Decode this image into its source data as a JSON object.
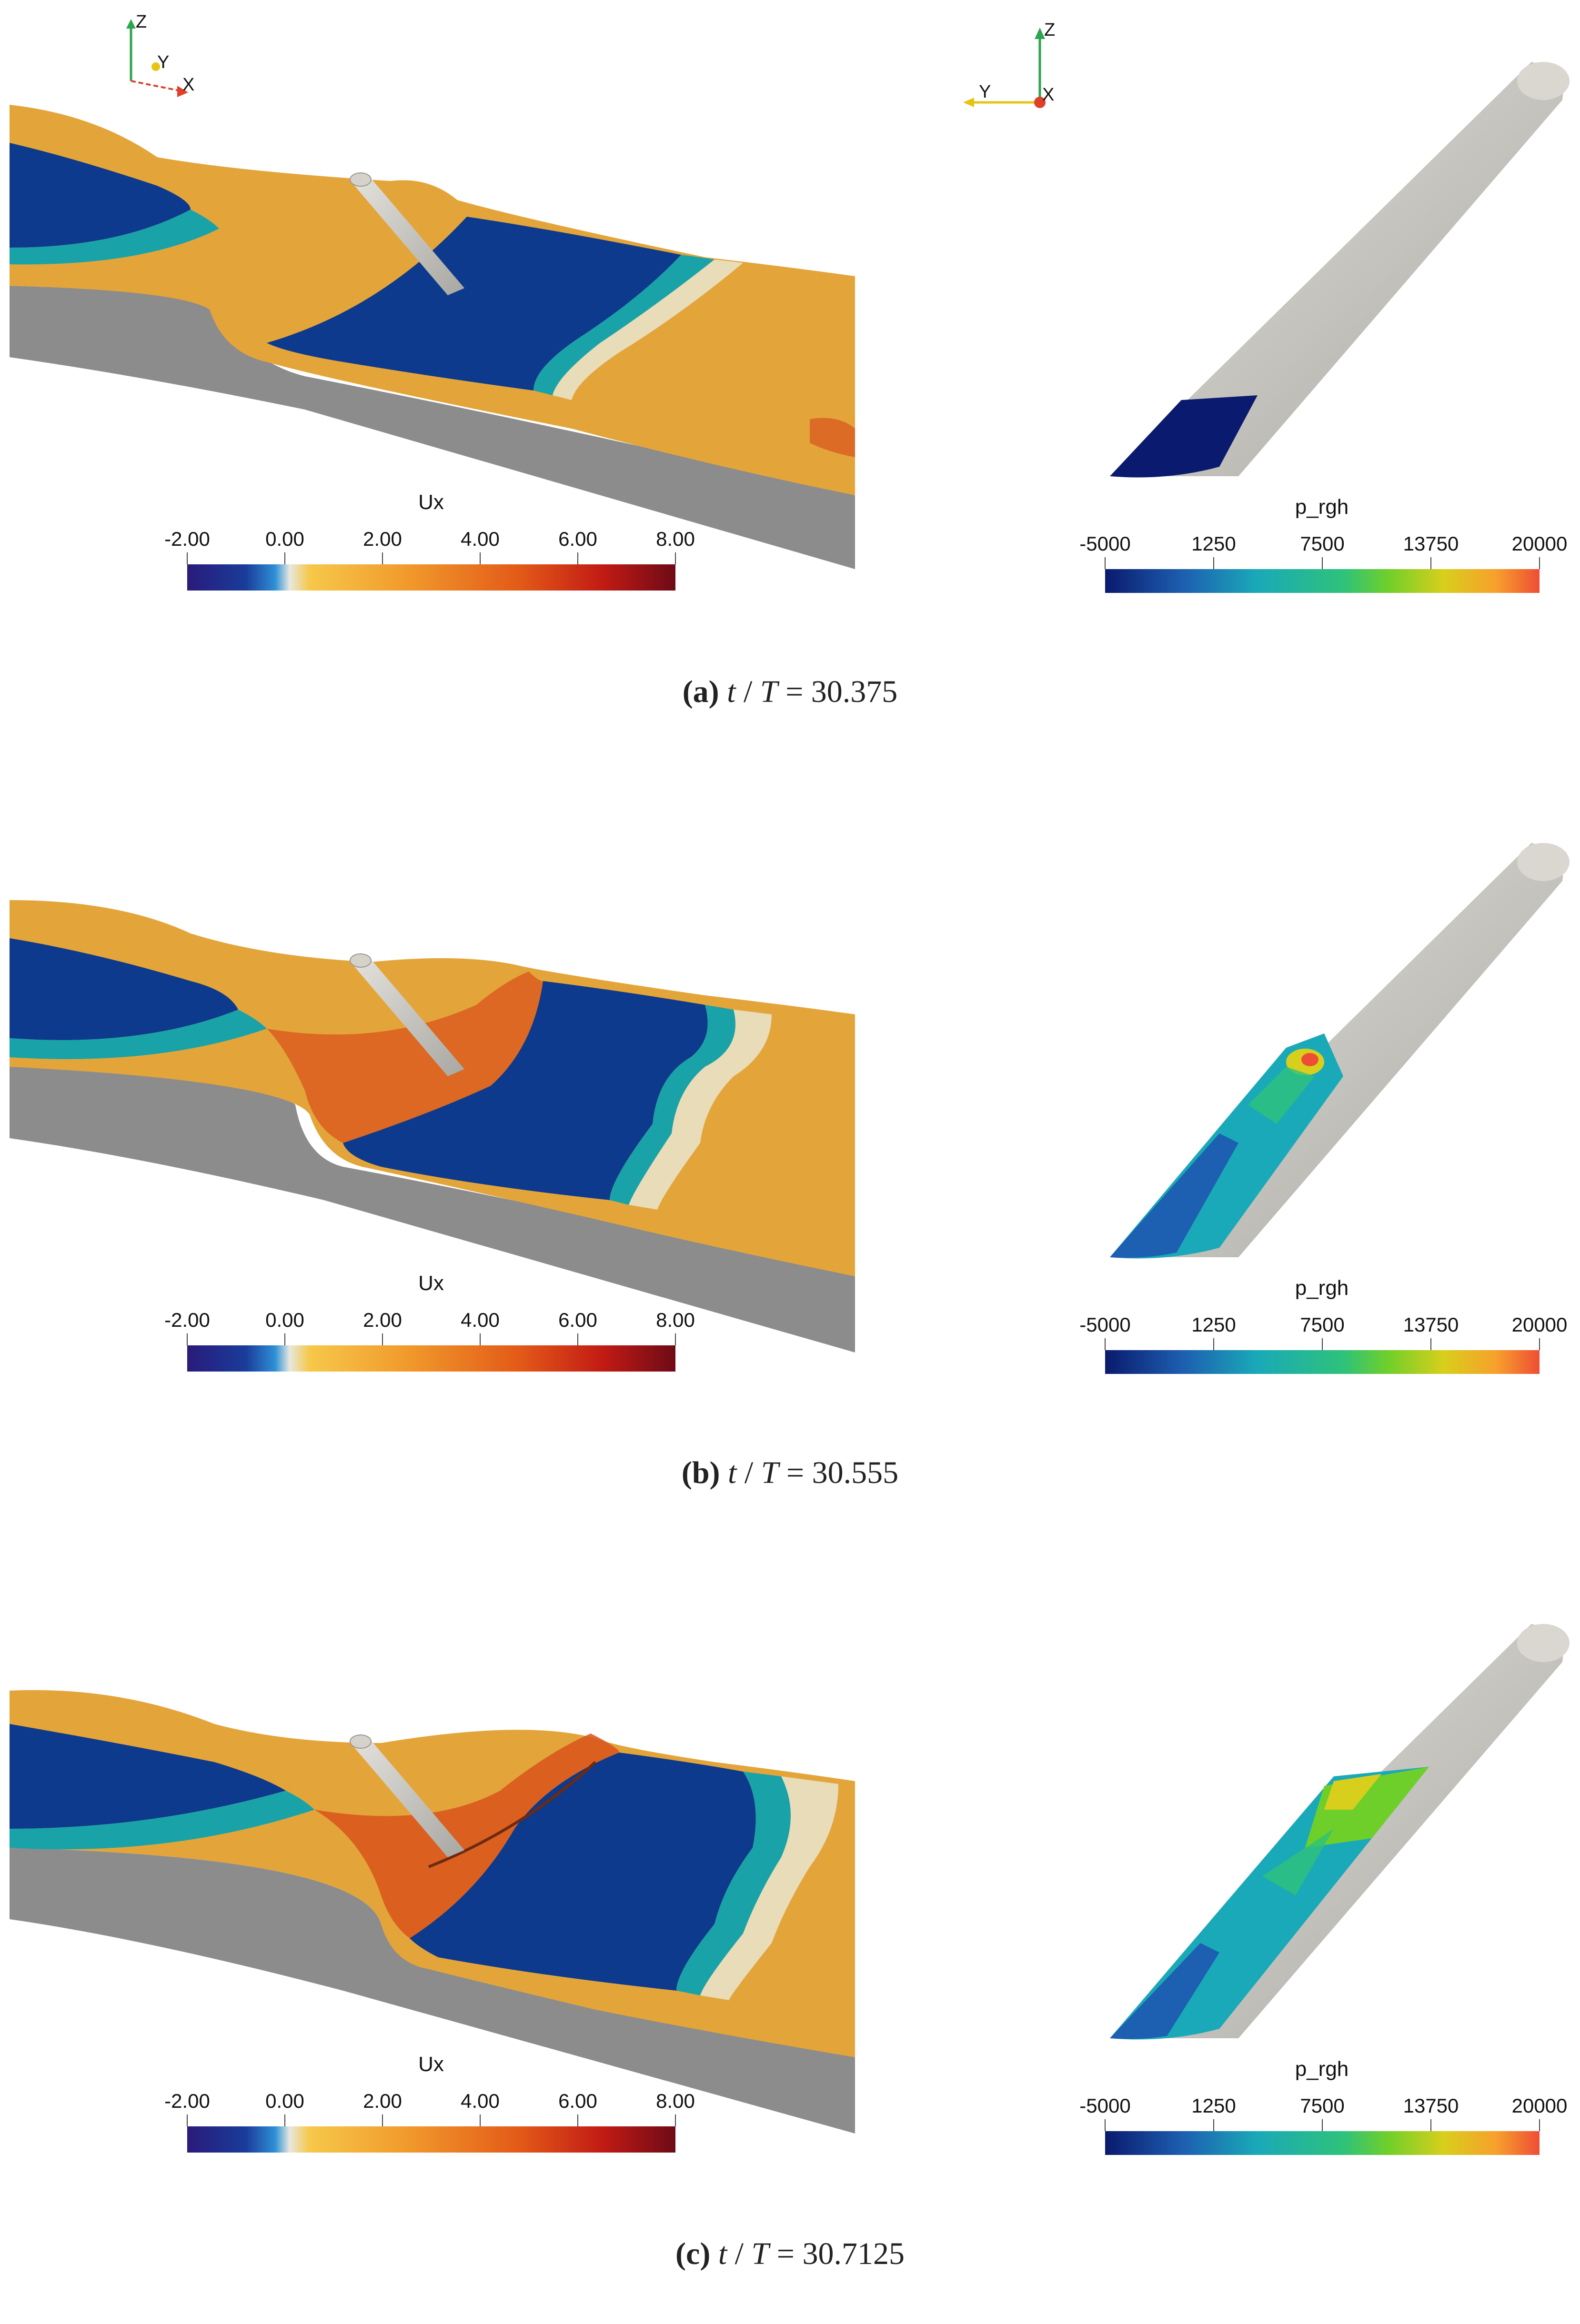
{
  "axes_left": {
    "z": "Z",
    "y": "Y",
    "x": "X"
  },
  "axes_right": {
    "z": "Z",
    "y": "Y",
    "x": "X"
  },
  "ux_bar": {
    "title": "Ux",
    "ticks": [
      "-2.00",
      "0.00",
      "2.00",
      "4.00",
      "6.00",
      "8.00"
    ],
    "stops": [
      "#2a1a7a",
      "#1a3c9a",
      "#2e8fd6",
      "#e8e8e0",
      "#f6c84a",
      "#f19a2c",
      "#e35a18",
      "#c21b14",
      "#6e0a16"
    ]
  },
  "p_bar": {
    "title": "p_rgh",
    "ticks": [
      "-5000",
      "1250",
      "7500",
      "13750",
      "20000"
    ],
    "stops": [
      "#0a1a6e",
      "#1d5fb0",
      "#1aa9b8",
      "#2ec27a",
      "#6fcf2a",
      "#d8cf1c",
      "#f7a02c",
      "#ee4d35"
    ]
  },
  "panels": [
    {
      "label": "(a)",
      "t": "t",
      "T": "T",
      "value": "30.375"
    },
    {
      "label": "(b)",
      "t": "t",
      "T": "T",
      "value": "30.555"
    },
    {
      "label": "(c)",
      "t": "t",
      "T": "T",
      "value": "30.7125"
    }
  ],
  "colors": {
    "ground": "#8c8c8c",
    "cylinder": "#cfcdc6",
    "blue": "#0d3a8c",
    "orange": "#e3a53a",
    "red": "#d9541c",
    "teal": "#19a3a8",
    "cream": "#e9dcb8"
  }
}
